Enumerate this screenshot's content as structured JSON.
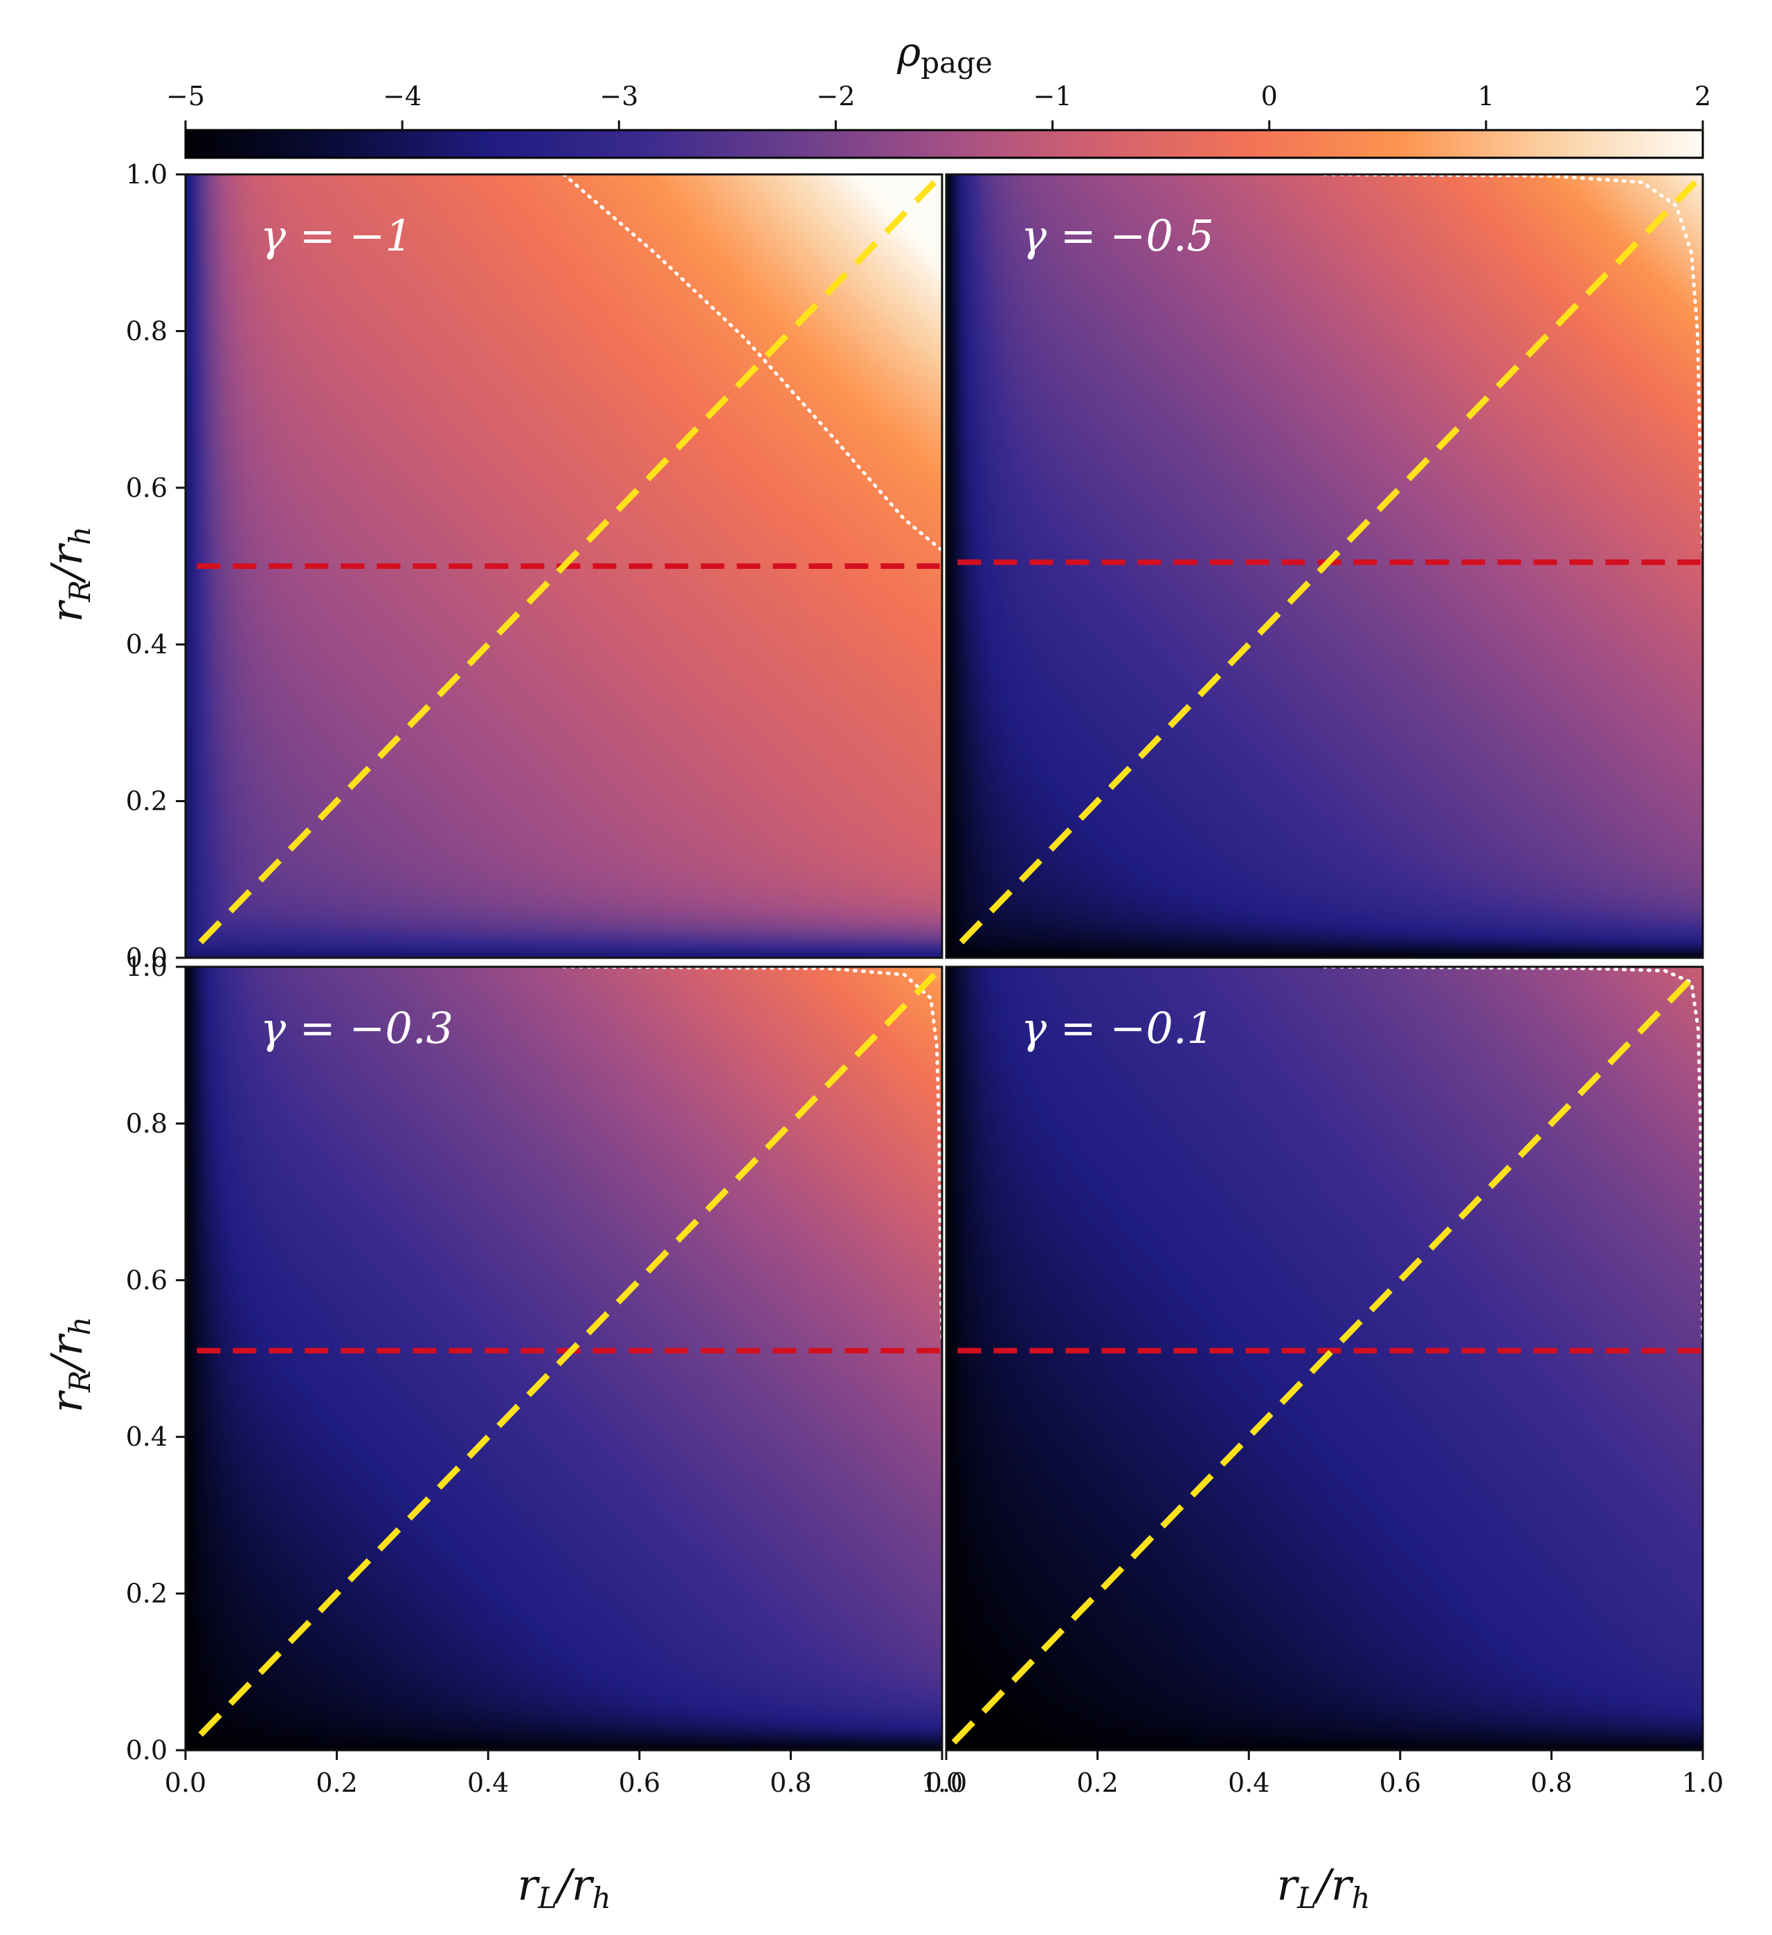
{
  "chart_data": {
    "type": "heatmap",
    "colorbar": {
      "title": "ρ_page",
      "title_main": "ρ",
      "title_sub": "page",
      "ticks": [
        -5,
        -4,
        -3,
        -2,
        -1,
        0,
        1,
        2
      ],
      "tick_labels": [
        "−5",
        "−4",
        "−3",
        "−2",
        "−1",
        "0",
        "1",
        "2"
      ],
      "range": [
        -5,
        2
      ],
      "colormap": "magma-like",
      "stops": [
        "#000004",
        "#0b0c3a",
        "#1f1c80",
        "#3a2a8e",
        "#6a3e8c",
        "#a24f86",
        "#d2616f",
        "#f27357",
        "#fd9450",
        "#fbd0a2",
        "#fefcf6"
      ]
    },
    "xlabel": "r_L/r_h",
    "xlabel_main": "r",
    "xlabel_sub": "L",
    "xlabel_den": "r",
    "xlabel_den_sub": "h",
    "ylabel": "r_R/r_h",
    "ylabel_main": "r",
    "ylabel_sub": "R",
    "ylabel_den": "r",
    "ylabel_den_sub": "h",
    "xlim": [
      0.0,
      1.0
    ],
    "ylim": [
      0.0,
      1.0
    ],
    "xticks": [
      0.0,
      0.2,
      0.4,
      0.6,
      0.8,
      1.0
    ],
    "yticks": [
      0.0,
      0.2,
      0.4,
      0.6,
      0.8,
      1.0
    ],
    "tick_labels": [
      "0.0",
      "0.2",
      "0.4",
      "0.6",
      "0.8",
      "1.0"
    ],
    "panels": [
      {
        "label": "γ = −1",
        "gamma": -1.0,
        "row": 0,
        "col": 0,
        "field": {
          "base": -2.6,
          "grad_x": 1.7,
          "grad_y": 1.7,
          "corner_boost": 2.0,
          "edge_low": -4.0
        },
        "horizontal_line_y": 0.5,
        "diagonal": {
          "from": [
            0.02,
            0.02
          ],
          "to": [
            0.99,
            0.99
          ]
        },
        "contour_rho_zero": [
          [
            0.5,
            1.0
          ],
          [
            0.62,
            0.9
          ],
          [
            0.74,
            0.79
          ],
          [
            0.86,
            0.66
          ],
          [
            0.95,
            0.56
          ],
          [
            1.0,
            0.52
          ]
        ]
      },
      {
        "label": "γ = −0.5",
        "gamma": -0.5,
        "row": 0,
        "col": 1,
        "field": {
          "base": -4.4,
          "grad_x": 2.3,
          "grad_y": 2.3,
          "corner_boost": 1.6,
          "edge_low": -5.0
        },
        "horizontal_line_y": 0.505,
        "diagonal": {
          "from": [
            0.02,
            0.02
          ],
          "to": [
            0.99,
            0.99
          ]
        },
        "contour_rho_zero": [
          [
            0.5,
            1.0
          ],
          [
            0.8,
            0.998
          ],
          [
            0.92,
            0.99
          ],
          [
            0.965,
            0.96
          ],
          [
            0.985,
            0.9
          ],
          [
            0.993,
            0.8
          ],
          [
            0.997,
            0.62
          ],
          [
            1.0,
            0.52
          ]
        ]
      },
      {
        "label": "γ = −0.3",
        "gamma": -0.3,
        "row": 1,
        "col": 0,
        "field": {
          "base": -5.0,
          "grad_x": 2.3,
          "grad_y": 2.3,
          "corner_boost": 1.2,
          "edge_low": -5.0
        },
        "horizontal_line_y": 0.51,
        "diagonal": {
          "from": [
            0.02,
            0.02
          ],
          "to": [
            0.99,
            0.99
          ]
        },
        "contour_rho_zero": [
          [
            0.5,
            1.0
          ],
          [
            0.85,
            0.998
          ],
          [
            0.95,
            0.99
          ],
          [
            0.985,
            0.96
          ],
          [
            0.993,
            0.9
          ],
          [
            0.996,
            0.8
          ],
          [
            0.998,
            0.62
          ],
          [
            1.0,
            0.52
          ]
        ]
      },
      {
        "label": "γ = −0.1",
        "gamma": -0.1,
        "row": 1,
        "col": 1,
        "field": {
          "base": -5.2,
          "grad_x": 1.9,
          "grad_y": 1.7,
          "corner_boost": 0.7,
          "edge_low": -5.0
        },
        "horizontal_line_y": 0.51,
        "diagonal": {
          "from": [
            0.01,
            0.01
          ],
          "to": [
            0.99,
            0.99
          ]
        },
        "contour_rho_zero": [
          [
            0.5,
            1.0
          ],
          [
            0.85,
            0.998
          ],
          [
            0.95,
            0.995
          ],
          [
            0.985,
            0.98
          ],
          [
            0.994,
            0.92
          ],
          [
            0.997,
            0.8
          ],
          [
            0.999,
            0.62
          ],
          [
            1.0,
            0.52
          ]
        ]
      }
    ],
    "line_colors": {
      "diagonal": "#ffe21a",
      "horizontal": "#d40f1f",
      "contour": "#ffffff"
    }
  }
}
